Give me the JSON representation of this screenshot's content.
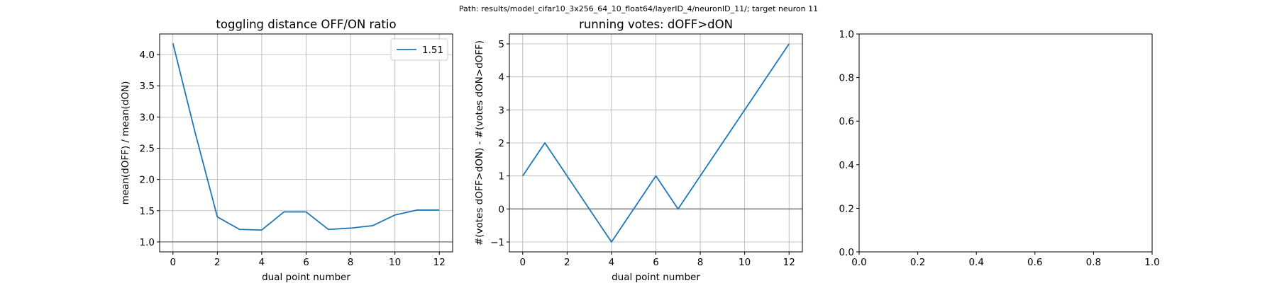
{
  "figure": {
    "suptitle": "Path: results/model_cifar10_3x256_64_10_float64/layerID_4/neuronID_11/; target neuron 11"
  },
  "colors": {
    "series": "#1f77b4",
    "grid": "#b0b0b0",
    "refline": "#808080"
  },
  "chart_data": [
    {
      "type": "line",
      "title": "toggling distance OFF/ON ratio",
      "xlabel": "dual point number",
      "ylabel": "mean(dOFF) / mean(dON)",
      "xlim": [
        -0.6,
        12.6
      ],
      "ylim": [
        0.84,
        4.33
      ],
      "xticks": [
        0,
        2,
        4,
        6,
        8,
        10,
        12
      ],
      "xtick_labels": [
        "0",
        "2",
        "4",
        "6",
        "8",
        "10",
        "12"
      ],
      "yticks": [
        1.0,
        1.5,
        2.0,
        2.5,
        3.0,
        3.5,
        4.0
      ],
      "ytick_labels": [
        "1.0",
        "1.5",
        "2.0",
        "2.5",
        "3.0",
        "3.5",
        "4.0"
      ],
      "grid": true,
      "legend": {
        "placement": "top-right",
        "entries": [
          "1.51"
        ]
      },
      "hline": 1.0,
      "series": [
        {
          "name": "1.51",
          "x": [
            0,
            1,
            2,
            3,
            4,
            5,
            6,
            7,
            8,
            9,
            10,
            11,
            12
          ],
          "y": [
            4.18,
            2.75,
            1.4,
            1.2,
            1.19,
            1.48,
            1.48,
            1.2,
            1.22,
            1.26,
            1.43,
            1.51,
            1.51
          ]
        }
      ]
    },
    {
      "type": "line",
      "title": "running votes: dOFF>dON",
      "xlabel": "dual point number",
      "ylabel": "#(votes dOFF>dON) - #(votes dON>dOFF)",
      "xlim": [
        -0.6,
        12.6
      ],
      "ylim": [
        -1.3,
        5.3
      ],
      "xticks": [
        0,
        2,
        4,
        6,
        8,
        10,
        12
      ],
      "xtick_labels": [
        "0",
        "2",
        "4",
        "6",
        "8",
        "10",
        "12"
      ],
      "yticks": [
        -1,
        0,
        1,
        2,
        3,
        4,
        5
      ],
      "ytick_labels": [
        "−1",
        "0",
        "1",
        "2",
        "3",
        "4",
        "5"
      ],
      "grid": true,
      "hline": 0,
      "series": [
        {
          "x": [
            0,
            1,
            2,
            3,
            4,
            5,
            6,
            7,
            8,
            9,
            10,
            11,
            12
          ],
          "y": [
            1,
            2,
            1,
            0,
            -1,
            0,
            1,
            0,
            1,
            2,
            3,
            4,
            5
          ]
        }
      ]
    },
    {
      "type": "line",
      "title": "",
      "xlabel": "",
      "ylabel": "",
      "xlim": [
        0,
        1
      ],
      "ylim": [
        0,
        1
      ],
      "xticks": [
        0,
        0.2,
        0.4,
        0.6,
        0.8,
        1.0
      ],
      "xtick_labels": [
        "0.0",
        "0.2",
        "0.4",
        "0.6",
        "0.8",
        "1.0"
      ],
      "yticks": [
        0,
        0.2,
        0.4,
        0.6,
        0.8,
        1.0
      ],
      "ytick_labels": [
        "0.0",
        "0.2",
        "0.4",
        "0.6",
        "0.8",
        "1.0"
      ],
      "grid": false,
      "series": []
    }
  ]
}
